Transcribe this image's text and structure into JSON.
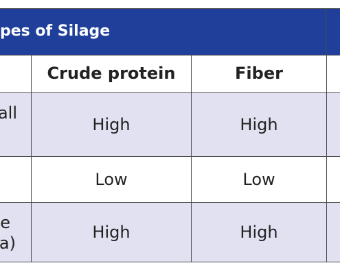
{
  "title": "pes of Silage",
  "table": {
    "header": [
      "Crude protein",
      "Fiber"
    ],
    "rows": [
      {
        "label": [
          "all"
        ],
        "cells": [
          "High",
          "High"
        ]
      },
      {
        "cells": [
          "Low",
          "Low"
        ]
      },
      {
        "label": [
          "e",
          "fa)"
        ],
        "cells": [
          "High",
          "High"
        ]
      }
    ]
  }
}
